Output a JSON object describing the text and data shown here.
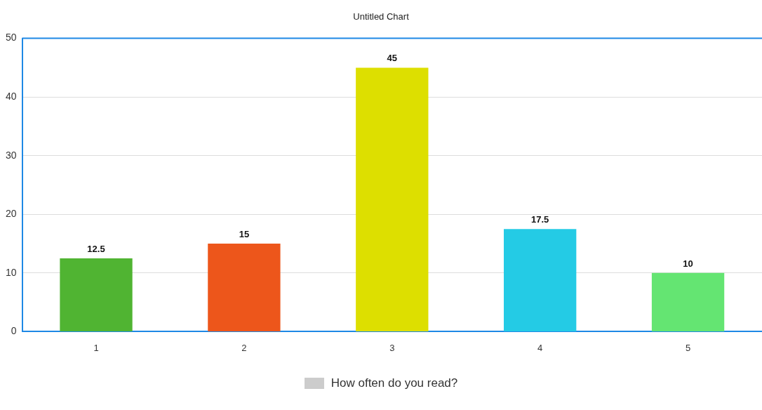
{
  "chart_data": {
    "type": "bar",
    "title": "Untitled Chart",
    "categories": [
      "1",
      "2",
      "3",
      "4",
      "5"
    ],
    "series": [
      {
        "name": "How often do you read?",
        "color": "#cccccc",
        "colors": [
          "#50b432",
          "#ed561b",
          "#dddf00",
          "#24cbe5",
          "#64e572"
        ],
        "values": [
          12.5,
          15,
          45,
          17.5,
          10
        ]
      }
    ],
    "ylim": [
      0,
      50
    ],
    "yticks": [
      0,
      10,
      20,
      30,
      40,
      50
    ],
    "grid": "y",
    "legend": "bottom",
    "data_labels": true
  }
}
